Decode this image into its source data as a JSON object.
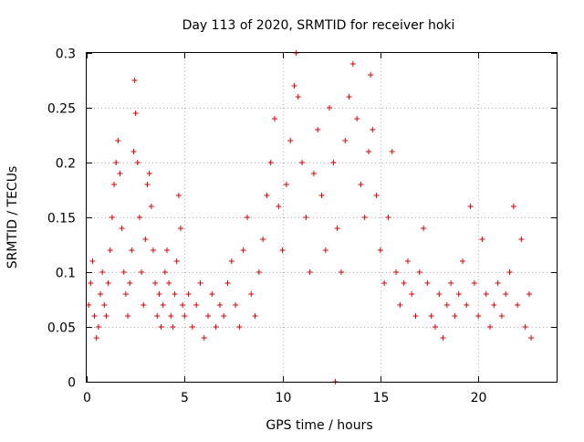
{
  "chart_data": {
    "type": "scatter",
    "title": "Day 113 of 2020, SRMTID for receiver hoki",
    "xlabel": "GPS time / hours",
    "ylabel": "SRMTID / TECUs",
    "xlim": [
      0,
      24
    ],
    "ylim": [
      0,
      0.3
    ],
    "xticks": [
      0,
      5,
      10,
      15,
      20
    ],
    "xtick_labels": [
      "0",
      "5",
      "10",
      "15",
      "20"
    ],
    "yticks": [
      0,
      0.05,
      0.1,
      0.15,
      0.2,
      0.25,
      0.3
    ],
    "ytick_labels": [
      "0",
      "0.05",
      "0.1",
      "0.15",
      "0.2",
      "0.25",
      "0.3"
    ],
    "grid": true,
    "marker": "plus",
    "series": [
      {
        "name": "SRMTID",
        "color": "#e00000",
        "points": [
          [
            0.1,
            0.07
          ],
          [
            0.2,
            0.09
          ],
          [
            0.3,
            0.11
          ],
          [
            0.4,
            0.06
          ],
          [
            0.5,
            0.04
          ],
          [
            0.6,
            0.05
          ],
          [
            0.7,
            0.08
          ],
          [
            0.8,
            0.1
          ],
          [
            0.9,
            0.07
          ],
          [
            1.0,
            0.06
          ],
          [
            1.1,
            0.09
          ],
          [
            1.2,
            0.12
          ],
          [
            1.3,
            0.15
          ],
          [
            1.4,
            0.18
          ],
          [
            1.5,
            0.2
          ],
          [
            1.6,
            0.22
          ],
          [
            1.7,
            0.19
          ],
          [
            1.8,
            0.14
          ],
          [
            1.9,
            0.1
          ],
          [
            2.0,
            0.08
          ],
          [
            2.1,
            0.06
          ],
          [
            2.2,
            0.09
          ],
          [
            2.3,
            0.12
          ],
          [
            2.4,
            0.21
          ],
          [
            2.45,
            0.275
          ],
          [
            2.5,
            0.245
          ],
          [
            2.6,
            0.2
          ],
          [
            2.7,
            0.15
          ],
          [
            2.8,
            0.1
          ],
          [
            2.9,
            0.07
          ],
          [
            3.0,
            0.13
          ],
          [
            3.1,
            0.18
          ],
          [
            3.2,
            0.19
          ],
          [
            3.3,
            0.16
          ],
          [
            3.4,
            0.12
          ],
          [
            3.5,
            0.09
          ],
          [
            3.6,
            0.06
          ],
          [
            3.7,
            0.08
          ],
          [
            3.8,
            0.05
          ],
          [
            3.9,
            0.07
          ],
          [
            4.0,
            0.1
          ],
          [
            4.1,
            0.12
          ],
          [
            4.2,
            0.09
          ],
          [
            4.3,
            0.06
          ],
          [
            4.4,
            0.05
          ],
          [
            4.5,
            0.08
          ],
          [
            4.6,
            0.11
          ],
          [
            4.7,
            0.17
          ],
          [
            4.8,
            0.14
          ],
          [
            4.9,
            0.07
          ],
          [
            5.0,
            0.06
          ],
          [
            5.2,
            0.08
          ],
          [
            5.4,
            0.05
          ],
          [
            5.6,
            0.07
          ],
          [
            5.8,
            0.09
          ],
          [
            6.0,
            0.04
          ],
          [
            6.2,
            0.06
          ],
          [
            6.4,
            0.08
          ],
          [
            6.6,
            0.05
          ],
          [
            6.8,
            0.07
          ],
          [
            7.0,
            0.06
          ],
          [
            7.2,
            0.09
          ],
          [
            7.4,
            0.11
          ],
          [
            7.6,
            0.07
          ],
          [
            7.8,
            0.05
          ],
          [
            8.0,
            0.12
          ],
          [
            8.2,
            0.15
          ],
          [
            8.4,
            0.08
          ],
          [
            8.6,
            0.06
          ],
          [
            8.8,
            0.1
          ],
          [
            9.0,
            0.13
          ],
          [
            9.2,
            0.17
          ],
          [
            9.4,
            0.2
          ],
          [
            9.6,
            0.24
          ],
          [
            9.8,
            0.16
          ],
          [
            10.0,
            0.12
          ],
          [
            10.2,
            0.18
          ],
          [
            10.4,
            0.22
          ],
          [
            10.6,
            0.27
          ],
          [
            10.7,
            0.3
          ],
          [
            10.8,
            0.26
          ],
          [
            11.0,
            0.2
          ],
          [
            11.2,
            0.15
          ],
          [
            11.4,
            0.1
          ],
          [
            11.6,
            0.19
          ],
          [
            11.8,
            0.23
          ],
          [
            12.0,
            0.17
          ],
          [
            12.2,
            0.12
          ],
          [
            12.4,
            0.25
          ],
          [
            12.6,
            0.2
          ],
          [
            12.7,
            0.0
          ],
          [
            12.8,
            0.14
          ],
          [
            13.0,
            0.1
          ],
          [
            13.2,
            0.22
          ],
          [
            13.4,
            0.26
          ],
          [
            13.6,
            0.29
          ],
          [
            13.8,
            0.24
          ],
          [
            14.0,
            0.18
          ],
          [
            14.2,
            0.15
          ],
          [
            14.4,
            0.21
          ],
          [
            14.5,
            0.28
          ],
          [
            14.6,
            0.23
          ],
          [
            14.8,
            0.17
          ],
          [
            15.0,
            0.12
          ],
          [
            15.2,
            0.09
          ],
          [
            15.4,
            0.15
          ],
          [
            15.6,
            0.21
          ],
          [
            15.8,
            0.1
          ],
          [
            16.0,
            0.07
          ],
          [
            16.2,
            0.09
          ],
          [
            16.4,
            0.11
          ],
          [
            16.6,
            0.08
          ],
          [
            16.8,
            0.06
          ],
          [
            17.0,
            0.1
          ],
          [
            17.2,
            0.14
          ],
          [
            17.4,
            0.09
          ],
          [
            17.6,
            0.06
          ],
          [
            17.8,
            0.05
          ],
          [
            18.0,
            0.08
          ],
          [
            18.2,
            0.04
          ],
          [
            18.4,
            0.07
          ],
          [
            18.6,
            0.09
          ],
          [
            18.8,
            0.06
          ],
          [
            19.0,
            0.08
          ],
          [
            19.2,
            0.11
          ],
          [
            19.4,
            0.07
          ],
          [
            19.6,
            0.16
          ],
          [
            19.8,
            0.09
          ],
          [
            20.0,
            0.06
          ],
          [
            20.2,
            0.13
          ],
          [
            20.4,
            0.08
          ],
          [
            20.6,
            0.05
          ],
          [
            20.8,
            0.07
          ],
          [
            21.0,
            0.09
          ],
          [
            21.2,
            0.06
          ],
          [
            21.4,
            0.08
          ],
          [
            21.6,
            0.1
          ],
          [
            21.8,
            0.16
          ],
          [
            22.0,
            0.07
          ],
          [
            22.2,
            0.13
          ],
          [
            22.4,
            0.05
          ],
          [
            22.6,
            0.08
          ],
          [
            22.7,
            0.04
          ]
        ]
      }
    ]
  }
}
